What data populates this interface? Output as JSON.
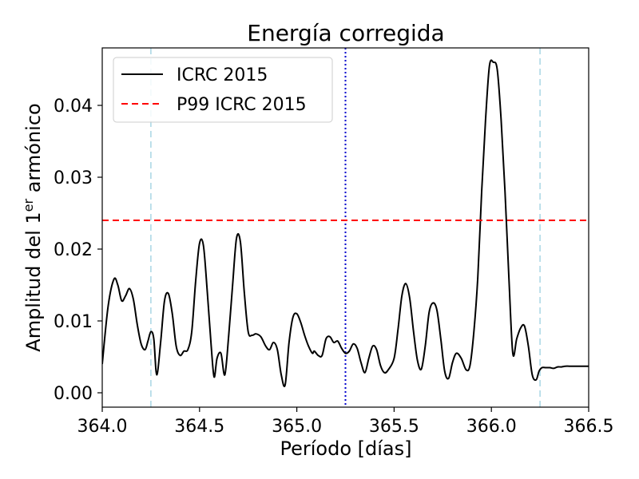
{
  "chart_data": {
    "type": "line",
    "title": "Energía corregida",
    "xlabel": "Período [días]",
    "ylabel": {
      "main": "Amplitud del 1",
      "superscript": "er",
      "suffix": " armónico"
    },
    "xlim": [
      364.0,
      366.5
    ],
    "ylim": [
      -0.002,
      0.048
    ],
    "xticks": [
      364.0,
      364.5,
      365.0,
      365.5,
      366.0,
      366.5
    ],
    "xtick_labels": [
      "364.0",
      "364.5",
      "365.0",
      "365.5",
      "366.0",
      "366.5"
    ],
    "yticks": [
      0.0,
      0.01,
      0.02,
      0.03,
      0.04
    ],
    "ytick_labels": [
      "0.00",
      "0.01",
      "0.02",
      "0.03",
      "0.04"
    ],
    "legend_position": "top-left",
    "series": [
      {
        "name": "ICRC 2015",
        "color": "#000000",
        "style": "solid",
        "x": [
          364.0,
          364.03,
          364.06,
          364.08,
          364.1,
          364.12,
          364.14,
          364.16,
          364.18,
          364.2,
          364.22,
          364.235,
          364.25,
          364.265,
          364.28,
          364.3,
          364.32,
          364.34,
          364.36,
          364.38,
          364.4,
          364.42,
          364.44,
          364.46,
          364.48,
          364.5,
          364.52,
          364.54,
          364.56,
          364.575,
          364.59,
          364.61,
          364.63,
          364.65,
          364.67,
          364.69,
          364.71,
          364.73,
          364.75,
          364.77,
          364.79,
          364.815,
          364.84,
          364.86,
          364.88,
          364.9,
          364.92,
          364.94,
          364.96,
          364.98,
          365.0,
          365.02,
          365.04,
          365.06,
          365.08,
          365.09,
          365.11,
          365.13,
          365.15,
          365.17,
          365.19,
          365.21,
          365.23,
          365.25,
          365.27,
          365.29,
          365.31,
          365.33,
          365.35,
          365.37,
          365.39,
          365.41,
          365.43,
          365.45,
          365.47,
          365.5,
          365.52,
          365.54,
          365.56,
          365.58,
          365.6,
          365.62,
          365.64,
          365.66,
          365.68,
          365.7,
          365.72,
          365.74,
          365.76,
          365.78,
          365.8,
          365.82,
          365.845,
          365.87,
          365.89,
          365.91,
          365.93,
          365.95,
          365.97,
          365.99,
          366.01,
          366.03,
          366.05,
          366.07,
          366.09,
          366.11,
          366.13,
          366.15,
          366.17,
          366.19,
          366.21,
          366.23,
          366.245,
          366.26,
          366.28,
          366.3,
          366.32,
          366.34,
          366.36,
          366.38,
          366.4,
          366.42,
          366.44,
          366.46,
          366.48,
          366.5
        ],
        "y": [
          0.004,
          0.012,
          0.0158,
          0.015,
          0.0128,
          0.0135,
          0.0145,
          0.013,
          0.0095,
          0.0068,
          0.006,
          0.0072,
          0.0085,
          0.0075,
          0.0025,
          0.007,
          0.0128,
          0.0138,
          0.011,
          0.0065,
          0.0052,
          0.0058,
          0.006,
          0.0085,
          0.0155,
          0.0208,
          0.0205,
          0.014,
          0.0065,
          0.0022,
          0.0048,
          0.0055,
          0.0025,
          0.008,
          0.015,
          0.0215,
          0.021,
          0.014,
          0.0085,
          0.008,
          0.0082,
          0.0078,
          0.0065,
          0.006,
          0.007,
          0.006,
          0.0025,
          0.0011,
          0.007,
          0.0105,
          0.011,
          0.0098,
          0.008,
          0.0065,
          0.0055,
          0.0058,
          0.0052,
          0.0052,
          0.0075,
          0.0078,
          0.007,
          0.0072,
          0.0062,
          0.0055,
          0.0058,
          0.0068,
          0.0062,
          0.0042,
          0.0028,
          0.0048,
          0.0065,
          0.006,
          0.0038,
          0.0028,
          0.0032,
          0.0048,
          0.0088,
          0.0135,
          0.0152,
          0.0132,
          0.0085,
          0.0045,
          0.0033,
          0.0065,
          0.0112,
          0.0125,
          0.0115,
          0.0075,
          0.003,
          0.002,
          0.0042,
          0.0055,
          0.0048,
          0.0032,
          0.0038,
          0.0085,
          0.016,
          0.028,
          0.038,
          0.0455,
          0.046,
          0.045,
          0.038,
          0.028,
          0.016,
          0.0055,
          0.0075,
          0.009,
          0.0093,
          0.0065,
          0.0025,
          0.0018,
          0.003,
          0.0035,
          0.0035,
          0.0035,
          0.0034,
          0.0036,
          0.0036,
          0.0037,
          0.0037,
          0.0037,
          0.0037,
          0.0037,
          0.0037,
          0.0037
        ]
      },
      {
        "name": "P99 ICRC 2015",
        "color": "#ff0000",
        "style": "dashed",
        "y_constant": 0.024
      }
    ],
    "reference_lines": [
      {
        "orientation": "vertical",
        "x": 365.25,
        "color": "#0000cc",
        "style": "dotted"
      },
      {
        "orientation": "vertical",
        "x": 364.25,
        "color": "#add8e6",
        "style": "dashed"
      },
      {
        "orientation": "vertical",
        "x": 366.25,
        "color": "#add8e6",
        "style": "dashed"
      }
    ]
  }
}
